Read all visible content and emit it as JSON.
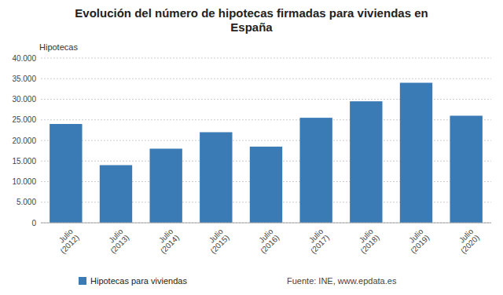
{
  "chart_data": {
    "type": "bar",
    "title": "Evolución del número de hipotecas firmadas para viviendas en\nEspaña",
    "ylabel": "Hipotecas",
    "categories": [
      "Julio\n(2012)",
      "Julio\n(2013)",
      "Julio\n(2014)",
      "Julio\n(2015)",
      "Julio\n(2016)",
      "Julio\n(2017)",
      "Julio\n(2018)",
      "Julio\n(2019)",
      "Julio\n(2020)"
    ],
    "series": [
      {
        "name": "Hipotecas para viviendas",
        "color": "#3a7ab5",
        "values": [
          24000,
          14000,
          18000,
          22000,
          18500,
          25500,
          29500,
          34000,
          26000
        ]
      }
    ],
    "ylim": [
      0,
      40000
    ],
    "yticks": [
      0,
      {
        "value": 5000,
        "label": "5.000"
      },
      {
        "value": 10000,
        "label": "10.000"
      },
      {
        "value": 15000,
        "label": "15.000"
      },
      {
        "value": 20000,
        "label": "20.000"
      },
      {
        "value": 25000,
        "label": "25.000"
      },
      {
        "value": 30000,
        "label": "30.000"
      },
      {
        "value": 35000,
        "label": "35.000"
      },
      {
        "value": 40000,
        "label": "40.000"
      }
    ],
    "grid": true,
    "legend": "bottom",
    "annotations": [
      "Fuente: INE, www.epdata.es"
    ]
  }
}
